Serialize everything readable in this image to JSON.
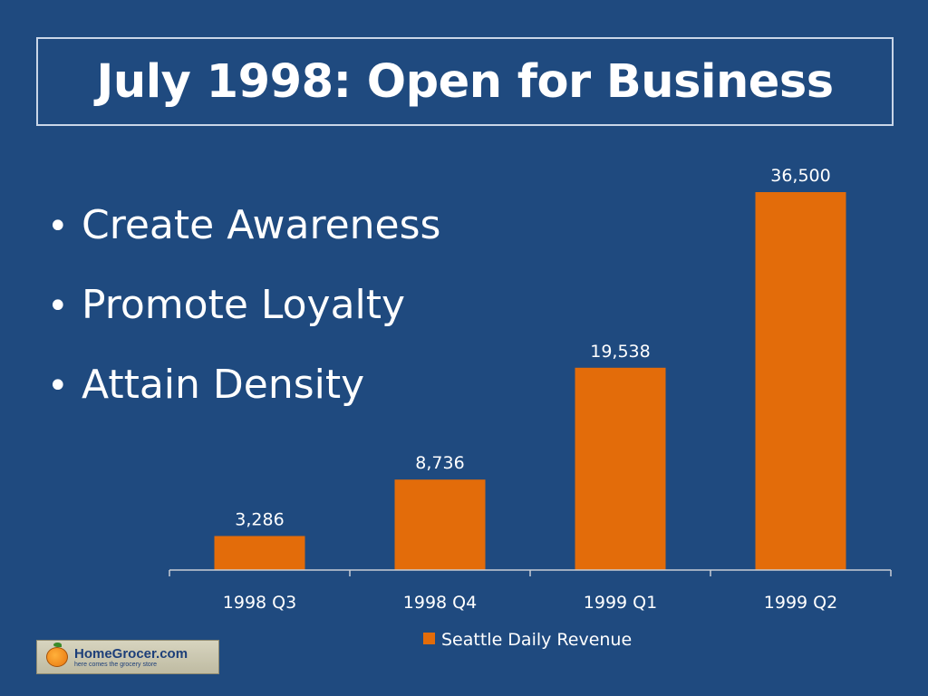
{
  "slide": {
    "title": "July 1998: Open for Business",
    "bullets": [
      "Create Awareness",
      "Promote Loyalty",
      "Attain Density"
    ],
    "bullet_symbol": "•",
    "logo": {
      "name": "HomeGrocer.com",
      "tagline": "here comes the grocery store"
    },
    "colors": {
      "background": "#1f4a7f",
      "bar": "#e36c0a",
      "text": "#ffffff"
    }
  },
  "chart_data": {
    "type": "bar",
    "categories": [
      "1998 Q3",
      "1998 Q4",
      "1999 Q1",
      "1999 Q2"
    ],
    "series": [
      {
        "name": "Seattle Daily Revenue",
        "values": [
          3286,
          8736,
          19538,
          36500
        ],
        "labels": [
          "3,286",
          "8,736",
          "19,538",
          "36,500"
        ]
      }
    ],
    "ylim": [
      0,
      40000
    ],
    "grid": false,
    "legend": "bottom",
    "data_labels": true
  }
}
